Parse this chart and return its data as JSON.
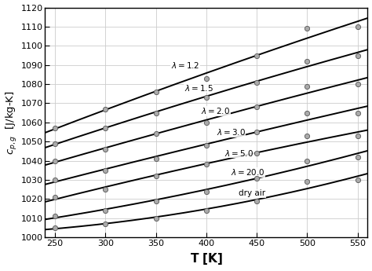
{
  "title": "",
  "xlabel": "$\\mathbf{T}$ [K]",
  "ylabel": "$c_{p,g}$  [J/kg-K]",
  "xlim": [
    240,
    560
  ],
  "ylim": [
    1000,
    1120
  ],
  "xticks": [
    250,
    300,
    350,
    400,
    450,
    500,
    550
  ],
  "yticks": [
    1000,
    1010,
    1020,
    1030,
    1040,
    1050,
    1060,
    1070,
    1080,
    1090,
    1100,
    1110,
    1120
  ],
  "curves": [
    {
      "label": "$\\lambda=1.2$",
      "T": [
        250,
        300,
        350,
        400,
        450,
        500,
        550
      ],
      "cp": [
        1057,
        1067,
        1076,
        1083,
        1095,
        1109,
        1110
      ],
      "label_T": 365,
      "label_cp": 1090
    },
    {
      "label": "$\\lambda=1.5$",
      "T": [
        250,
        300,
        350,
        400,
        450,
        500,
        550
      ],
      "cp": [
        1049,
        1057,
        1065,
        1073,
        1081,
        1092,
        1095
      ],
      "label_T": 378,
      "label_cp": 1078
    },
    {
      "label": "$\\lambda=2.0$",
      "T": [
        250,
        300,
        350,
        400,
        450,
        500,
        550
      ],
      "cp": [
        1040,
        1046,
        1054,
        1060,
        1068,
        1079,
        1080
      ],
      "label_T": 395,
      "label_cp": 1066
    },
    {
      "label": "$\\lambda=3.0$",
      "T": [
        250,
        300,
        350,
        400,
        450,
        500,
        550
      ],
      "cp": [
        1030,
        1035,
        1041,
        1048,
        1055,
        1065,
        1065
      ],
      "label_T": 410,
      "label_cp": 1055
    },
    {
      "label": "$\\lambda=5.0$",
      "T": [
        250,
        300,
        350,
        400,
        450,
        500,
        550
      ],
      "cp": [
        1021,
        1025,
        1032,
        1038,
        1044,
        1053,
        1053
      ],
      "label_T": 418,
      "label_cp": 1044
    },
    {
      "label": "$\\lambda=20.0$",
      "T": [
        250,
        300,
        350,
        400,
        450,
        500,
        550
      ],
      "cp": [
        1011,
        1014,
        1019,
        1024,
        1031,
        1040,
        1042
      ],
      "label_T": 424,
      "label_cp": 1034
    },
    {
      "label": "dry air",
      "T": [
        250,
        300,
        350,
        400,
        450,
        500,
        550
      ],
      "cp": [
        1005,
        1007,
        1010,
        1014,
        1019,
        1029,
        1030
      ],
      "label_T": 432,
      "label_cp": 1023
    }
  ],
  "line_color": "#000000",
  "line_width": 1.4,
  "marker_facecolor": "#aaaaaa",
  "marker_edgecolor": "#555555",
  "marker_size": 4.5,
  "grid_color": "#cccccc",
  "background_color": "white",
  "label_fontsize": 7.5
}
